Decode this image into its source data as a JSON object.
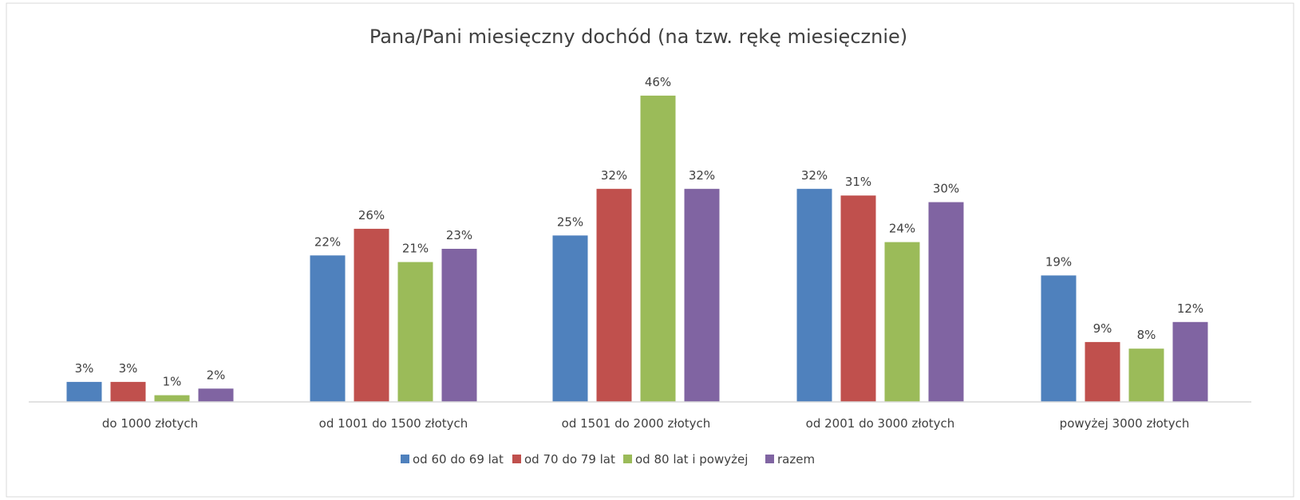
{
  "chart_data": {
    "type": "bar",
    "title": "Pana/Pani miesięczny dochód (na tzw. rękę miesięcznie)",
    "xlabel": "",
    "ylabel": "",
    "ylim": [
      0,
      50
    ],
    "grid": false,
    "legend_position": "bottom",
    "categories": [
      "do 1000 złotych",
      "od 1001 do 1500 złotych",
      "od 1501 do 2000 złotych",
      "od 2001 do 3000 złotych",
      "powyżej 3000 złotych"
    ],
    "series": [
      {
        "name": "od 60 do 69 lat",
        "color": "#4f81bd",
        "values": [
          3,
          22,
          25,
          32,
          19
        ]
      },
      {
        "name": "od 70 do 79 lat",
        "color": "#c0504d",
        "values": [
          3,
          26,
          32,
          31,
          9
        ]
      },
      {
        "name": "od 80 lat i powyżej",
        "color": "#9bbb59",
        "values": [
          1,
          21,
          46,
          24,
          8
        ]
      },
      {
        "name": "razem",
        "color": "#8064a2",
        "values": [
          2,
          23,
          32,
          30,
          12
        ]
      }
    ],
    "label_suffix": "%"
  }
}
